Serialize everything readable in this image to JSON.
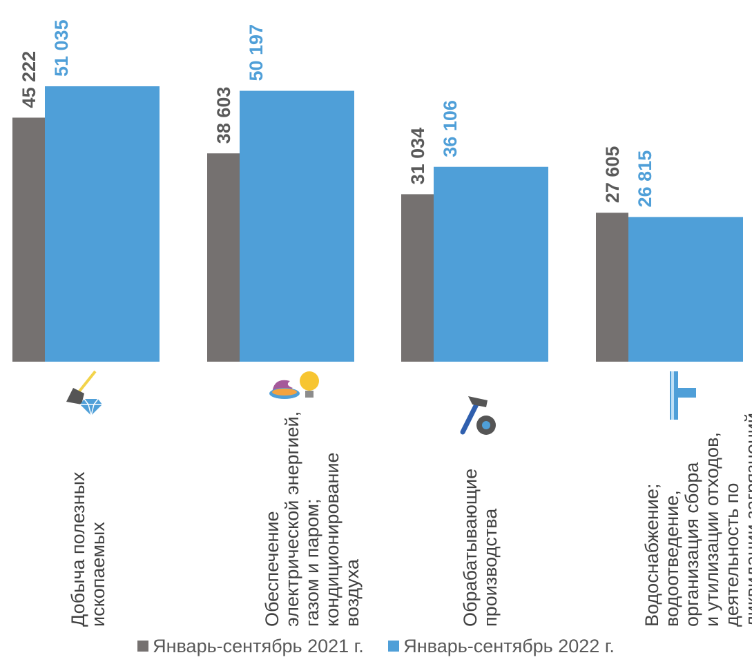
{
  "chart_data": {
    "type": "bar",
    "categories": [
      "Добыча полезных ископаемых",
      "Обеспечение электрической энергией, газом и паром; кондиционирование воздуха",
      "Обрабатывающие производства",
      "Водоснабжение; водоотведение, организация сбора и утилизации отходов, деятельность по ликвидации загрязнений"
    ],
    "category_label_lines": [
      [
        "Добыча полезных",
        "ископаемых"
      ],
      [
        "Обеспечение",
        "электрической энергией,",
        "газом и паром;",
        "кондиционирование",
        "воздуха"
      ],
      [
        "Обрабатывающие",
        "производства"
      ],
      [
        "Водоснабжение;",
        "водоотведение,",
        "организация сбора",
        "и утилизации отходов,",
        "деятельность по",
        "ликвидации загрязнений"
      ]
    ],
    "category_icons": [
      "shovel-diamond-icon",
      "flame-lightbulb-icon",
      "hammer-gear-icon",
      "water-pipe-icon"
    ],
    "series": [
      {
        "name": "Январь-сентябрь 2021 г.",
        "values": [
          45222,
          38603,
          31034,
          27605
        ],
        "labels": [
          "45 222",
          "38 603",
          "31 034",
          "27 605"
        ],
        "color": "#757170",
        "label_color": "#595959"
      },
      {
        "name": "Январь-сентябрь 2022 г.",
        "values": [
          51035,
          50197,
          36106,
          26815
        ],
        "labels": [
          "51 035",
          "50 197",
          "36 106",
          "26 815"
        ],
        "color": "#4f9fd8",
        "label_color": "#4f9fd8"
      }
    ],
    "ylim": [
      0,
      55000
    ],
    "grid": false,
    "legend_position": "bottom",
    "title": "",
    "xlabel": "",
    "ylabel": ""
  }
}
